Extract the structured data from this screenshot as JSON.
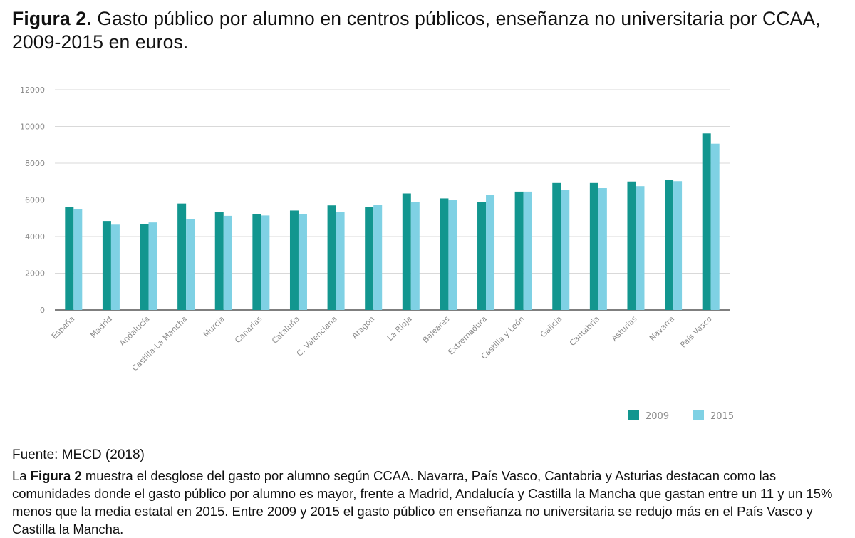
{
  "header": {
    "fig_label": "Figura 2.",
    "title": "Gasto público por alumno en centros públicos, enseñanza no universitaria por CCAA, 2009-2015 en euros."
  },
  "colors": {
    "series_2009": "#12968f",
    "series_2015": "#7fd1e4",
    "gridline": "#d9d9d9",
    "axis": "#555555"
  },
  "chart_data": {
    "type": "bar",
    "title": "",
    "xlabel": "",
    "ylabel": "",
    "ylim": [
      0,
      12000
    ],
    "yticks": [
      0,
      2000,
      4000,
      6000,
      8000,
      10000,
      12000
    ],
    "grid": true,
    "legend_position": "bottom-right",
    "categories": [
      "España",
      "Madrid",
      "Andalucía",
      "Castilla-La Mancha",
      "Murcia",
      "Canarias",
      "Cataluña",
      "C. Valenciana",
      "Aragón",
      "La Rioja",
      "Baleares",
      "Extremadura",
      "Castilla y León",
      "Galicia",
      "Cantabria",
      "Asturias",
      "Navarra",
      "País Vasco"
    ],
    "series": [
      {
        "name": "2009",
        "values": [
          5600,
          4850,
          4680,
          5800,
          5320,
          5240,
          5420,
          5700,
          5600,
          6350,
          6080,
          5900,
          6450,
          6920,
          6920,
          7000,
          7100,
          9620
        ]
      },
      {
        "name": "2015",
        "values": [
          5500,
          4650,
          4770,
          4950,
          5130,
          5150,
          5230,
          5330,
          5720,
          5900,
          5980,
          6270,
          6450,
          6550,
          6640,
          6750,
          7020,
          9060
        ]
      }
    ]
  },
  "footer": {
    "source": "Fuente: MECD (2018)",
    "desc_pre": "La ",
    "desc_bold": "Figura 2",
    "desc_post": " muestra el desglose del gasto por alumno según CCAA. Navarra, País Vasco, Cantabria y Asturias destacan como las comunidades donde el gasto público por alumno es mayor, frente a Madrid, Andalucía y Castilla la Mancha que gastan entre un 11 y un 15% menos que la media estatal en 2015. Entre 2009 y 2015 el gasto público en enseñanza no universitaria se redujo más en el País Vasco y Castilla la Mancha."
  }
}
